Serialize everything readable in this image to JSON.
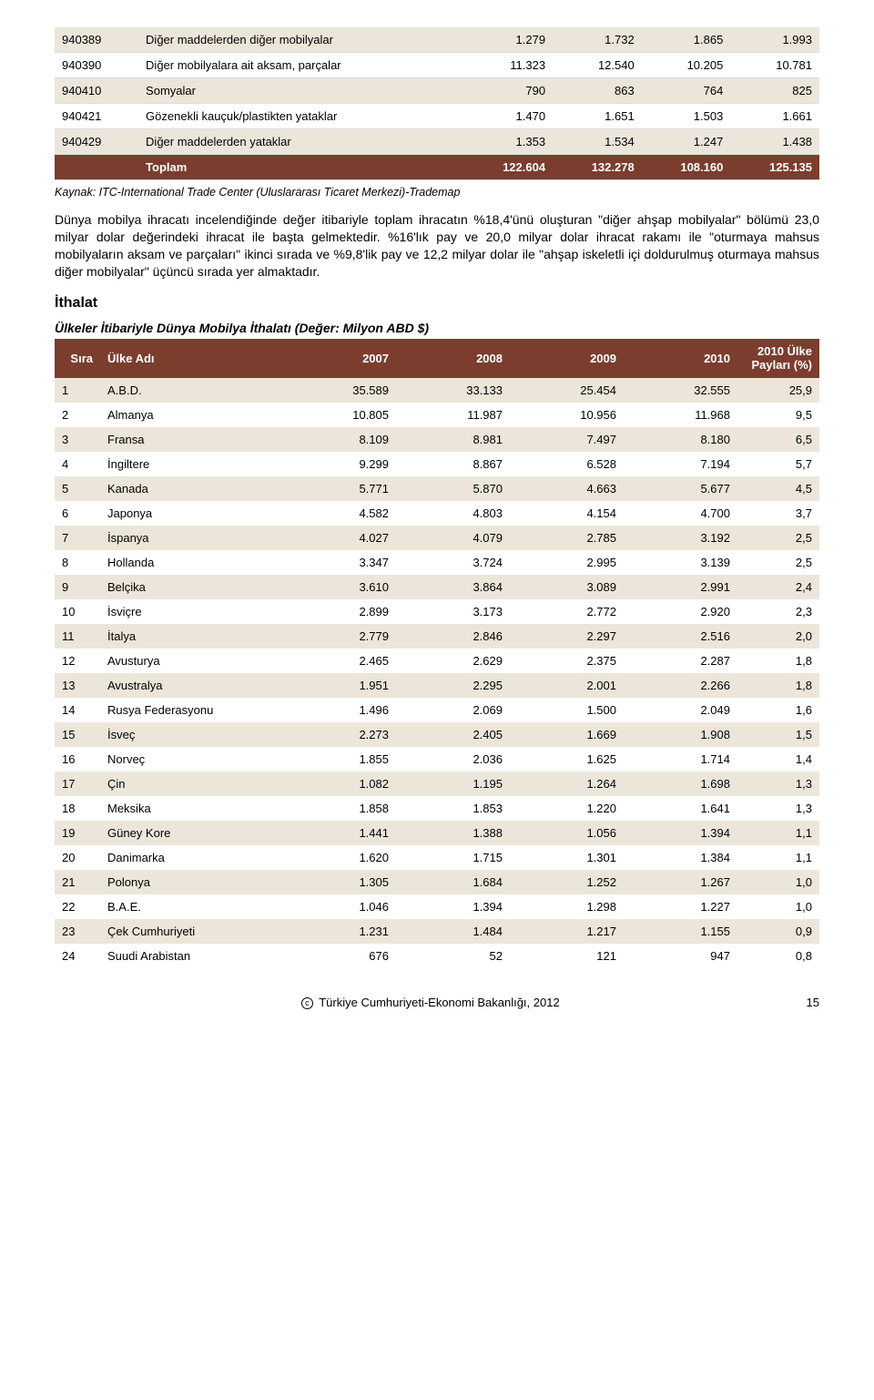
{
  "top_table": {
    "alt_row_bg": "#ece6da",
    "total_row_bg": "#7a3d2e",
    "total_row_color": "#ffffff",
    "border_color": "#dcdcdc",
    "rows": [
      {
        "code": "940389",
        "desc": "Diğer maddelerden diğer mobilyalar",
        "c1": "1.279",
        "c2": "1.732",
        "c3": "1.865",
        "c4": "1.993"
      },
      {
        "code": "940390",
        "desc": "Diğer mobilyalara ait aksam, parçalar",
        "c1": "11.323",
        "c2": "12.540",
        "c3": "10.205",
        "c4": "10.781"
      },
      {
        "code": "940410",
        "desc": "Somyalar",
        "c1": "790",
        "c2": "863",
        "c3": "764",
        "c4": "825"
      },
      {
        "code": "940421",
        "desc": "Gözenekli kauçuk/plastikten yataklar",
        "c1": "1.470",
        "c2": "1.651",
        "c3": "1.503",
        "c4": "1.661"
      },
      {
        "code": "940429",
        "desc": "Diğer maddelerden yataklar",
        "c1": "1.353",
        "c2": "1.534",
        "c3": "1.247",
        "c4": "1.438"
      }
    ],
    "total": {
      "label": "Toplam",
      "c1": "122.604",
      "c2": "132.278",
      "c3": "108.160",
      "c4": "125.135"
    }
  },
  "source_note": "Kaynak: ITC-International Trade Center (Uluslararası Ticaret Merkezi)-Trademap",
  "body_paragraph": "Dünya mobilya ihracatı incelendiğinde değer itibariyle toplam ihracatın %18,4'ünü oluşturan \"diğer ahşap mobilyalar\" bölümü 23,0 milyar dolar değerindeki ihracat ile başta gelmektedir. %16'lık pay ve 20,0 milyar dolar ihracat rakamı ile \"oturmaya mahsus mobilyaların aksam ve parçaları\" ikinci sırada ve %9,8'lik pay ve 12,2 milyar dolar ile \"ahşap iskeletli içi doldurulmuş oturmaya mahsus diğer mobilyalar\" üçüncü sırada yer almaktadır.",
  "section_title": "İthalat",
  "import_table": {
    "title": "Ülkeler İtibariyle Dünya Mobilya İthalatı (Değer: Milyon ABD $)",
    "header_bg": "#7a3d2e",
    "header_color": "#ffffff",
    "alt_row_bg": "#ece6da",
    "columns": [
      "Sıra",
      "Ülke Adı",
      "2007",
      "2008",
      "2009",
      "2010",
      "2010 Ülke Payları (%)"
    ],
    "rows": [
      {
        "n": "1",
        "name": "A.B.D.",
        "c1": "35.589",
        "c2": "33.133",
        "c3": "25.454",
        "c4": "32.555",
        "c5": "25,9"
      },
      {
        "n": "2",
        "name": "Almanya",
        "c1": "10.805",
        "c2": "11.987",
        "c3": "10.956",
        "c4": "11.968",
        "c5": "9,5"
      },
      {
        "n": "3",
        "name": "Fransa",
        "c1": "8.109",
        "c2": "8.981",
        "c3": "7.497",
        "c4": "8.180",
        "c5": "6,5"
      },
      {
        "n": "4",
        "name": "İngiltere",
        "c1": "9.299",
        "c2": "8.867",
        "c3": "6.528",
        "c4": "7.194",
        "c5": "5,7"
      },
      {
        "n": "5",
        "name": "Kanada",
        "c1": "5.771",
        "c2": "5.870",
        "c3": "4.663",
        "c4": "5.677",
        "c5": "4,5"
      },
      {
        "n": "6",
        "name": "Japonya",
        "c1": "4.582",
        "c2": "4.803",
        "c3": "4.154",
        "c4": "4.700",
        "c5": "3,7"
      },
      {
        "n": "7",
        "name": "İspanya",
        "c1": "4.027",
        "c2": "4.079",
        "c3": "2.785",
        "c4": "3.192",
        "c5": "2,5"
      },
      {
        "n": "8",
        "name": "Hollanda",
        "c1": "3.347",
        "c2": "3.724",
        "c3": "2.995",
        "c4": "3.139",
        "c5": "2,5"
      },
      {
        "n": "9",
        "name": "Belçika",
        "c1": "3.610",
        "c2": "3.864",
        "c3": "3.089",
        "c4": "2.991",
        "c5": "2,4"
      },
      {
        "n": "10",
        "name": "İsviçre",
        "c1": "2.899",
        "c2": "3.173",
        "c3": "2.772",
        "c4": "2.920",
        "c5": "2,3"
      },
      {
        "n": "11",
        "name": "İtalya",
        "c1": "2.779",
        "c2": "2.846",
        "c3": "2.297",
        "c4": "2.516",
        "c5": "2,0"
      },
      {
        "n": "12",
        "name": "Avusturya",
        "c1": "2.465",
        "c2": "2.629",
        "c3": "2.375",
        "c4": "2.287",
        "c5": "1,8"
      },
      {
        "n": "13",
        "name": "Avustralya",
        "c1": "1.951",
        "c2": "2.295",
        "c3": "2.001",
        "c4": "2.266",
        "c5": "1,8"
      },
      {
        "n": "14",
        "name": "Rusya Federasyonu",
        "c1": "1.496",
        "c2": "2.069",
        "c3": "1.500",
        "c4": "2.049",
        "c5": "1,6"
      },
      {
        "n": "15",
        "name": "İsveç",
        "c1": "2.273",
        "c2": "2.405",
        "c3": "1.669",
        "c4": "1.908",
        "c5": "1,5"
      },
      {
        "n": "16",
        "name": "Norveç",
        "c1": "1.855",
        "c2": "2.036",
        "c3": "1.625",
        "c4": "1.714",
        "c5": "1,4"
      },
      {
        "n": "17",
        "name": "Çin",
        "c1": "1.082",
        "c2": "1.195",
        "c3": "1.264",
        "c4": "1.698",
        "c5": "1,3"
      },
      {
        "n": "18",
        "name": "Meksika",
        "c1": "1.858",
        "c2": "1.853",
        "c3": "1.220",
        "c4": "1.641",
        "c5": "1,3"
      },
      {
        "n": "19",
        "name": "Güney Kore",
        "c1": "1.441",
        "c2": "1.388",
        "c3": "1.056",
        "c4": "1.394",
        "c5": "1,1"
      },
      {
        "n": "20",
        "name": "Danimarka",
        "c1": "1.620",
        "c2": "1.715",
        "c3": "1.301",
        "c4": "1.384",
        "c5": "1,1"
      },
      {
        "n": "21",
        "name": "Polonya",
        "c1": "1.305",
        "c2": "1.684",
        "c3": "1.252",
        "c4": "1.267",
        "c5": "1,0"
      },
      {
        "n": "22",
        "name": "B.A.E.",
        "c1": "1.046",
        "c2": "1.394",
        "c3": "1.298",
        "c4": "1.227",
        "c5": "1,0"
      },
      {
        "n": "23",
        "name": "Çek Cumhuriyeti",
        "c1": "1.231",
        "c2": "1.484",
        "c3": "1.217",
        "c4": "1.155",
        "c5": "0,9"
      },
      {
        "n": "24",
        "name": "Suudi Arabistan",
        "c1": "676",
        "c2": "52",
        "c3": "121",
        "c4": "947",
        "c5": "0,8"
      }
    ]
  },
  "footer": {
    "copyright_symbol": "©",
    "copyright_text": "Türkiye Cumhuriyeti-Ekonomi Bakanlığı, 2012",
    "page_number": "15"
  }
}
